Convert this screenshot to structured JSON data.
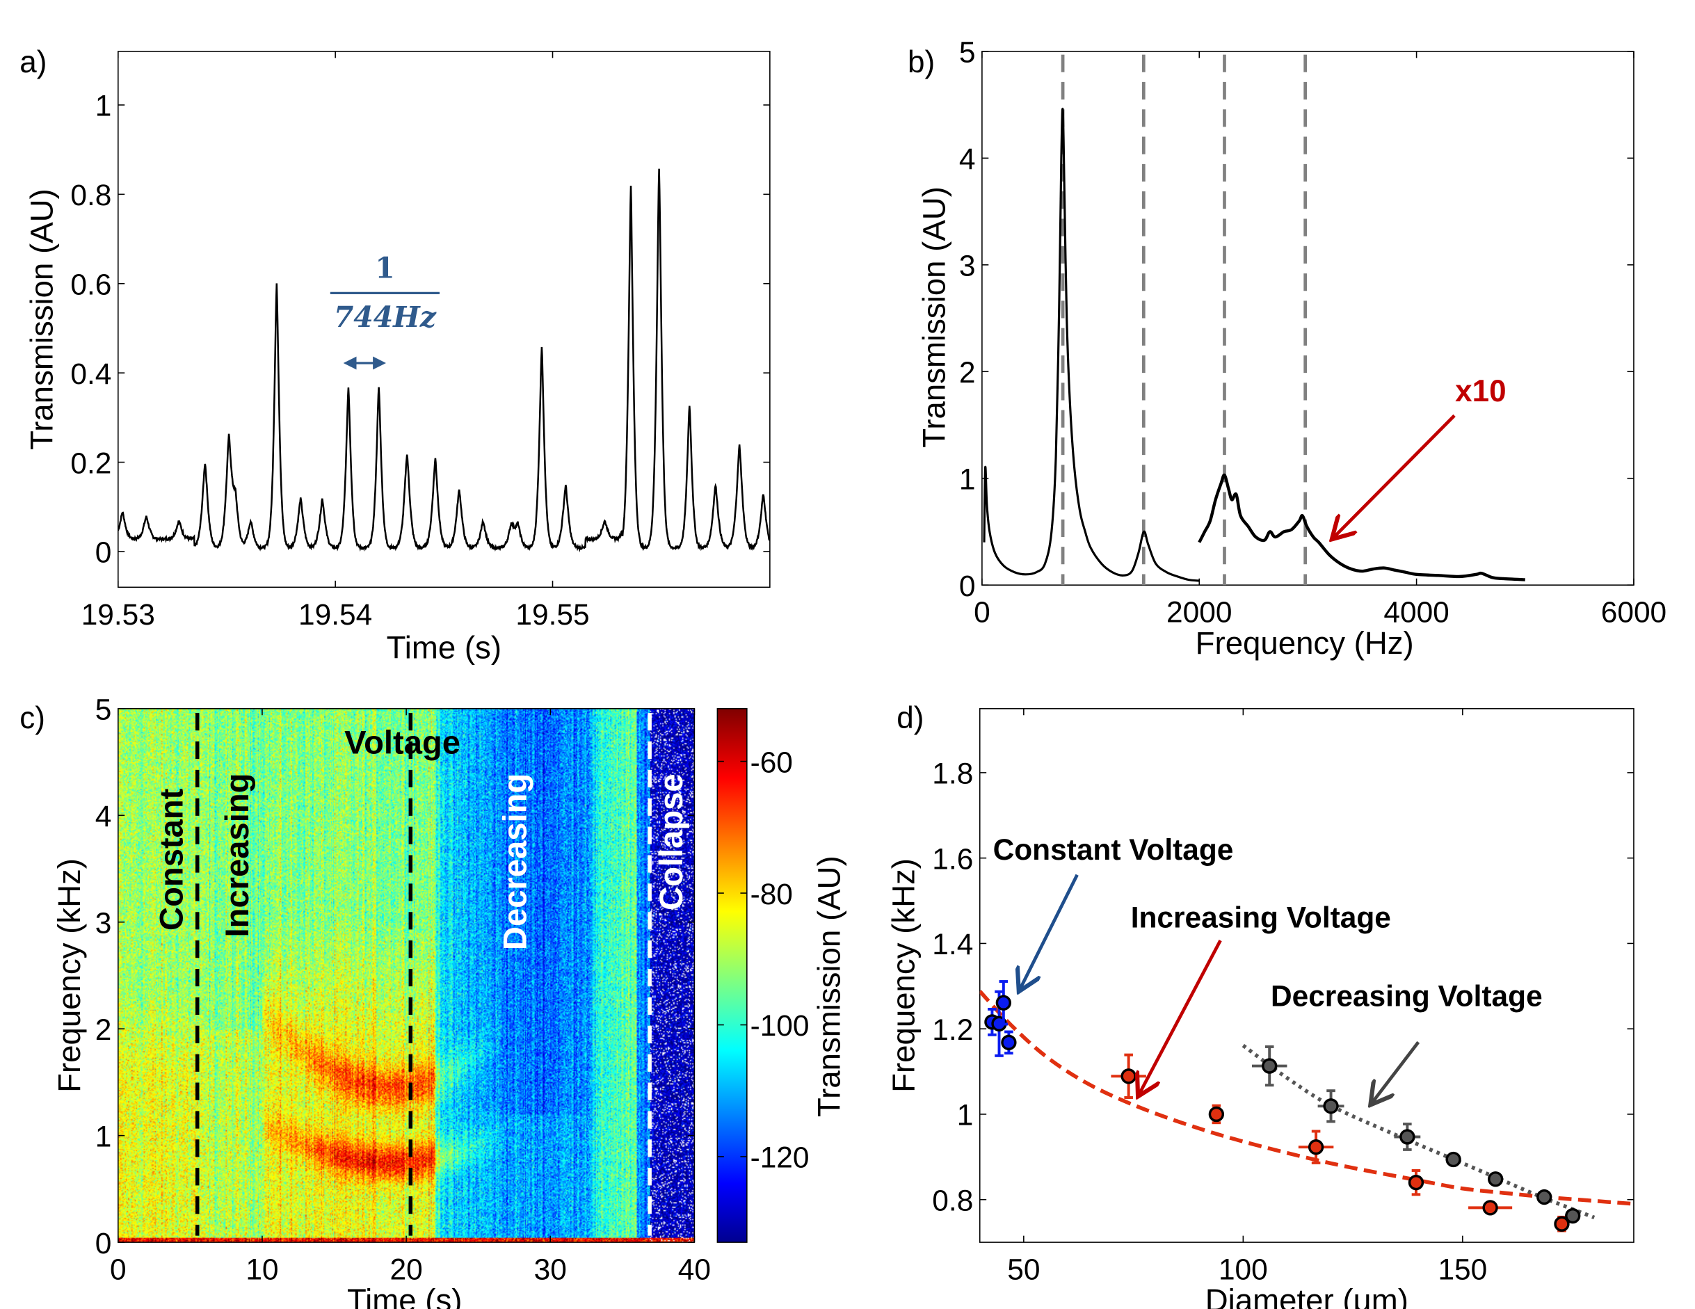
{
  "chart_data": [
    {
      "panel": "a)",
      "type": "line",
      "xlabel": "Time (s)",
      "ylabel": "Transmission (AU)",
      "xlim": [
        19.53,
        19.56
      ],
      "ylim": [
        -0.08,
        1.12
      ],
      "xticks": [
        19.53,
        19.54,
        19.55
      ],
      "xtick_labels": [
        "19.53",
        "19.54",
        "19.55"
      ],
      "yticks": [
        0,
        0.2,
        0.4,
        0.6,
        0.8,
        1
      ],
      "ytick_labels": [
        "0",
        "0.2",
        "0.4",
        "0.6",
        "0.8",
        "1"
      ],
      "line_color": "#000000",
      "peaks": [
        {
          "t": 19.5302,
          "y": 0.07
        },
        {
          "t": 19.5313,
          "y": 0.06
        },
        {
          "t": 19.5328,
          "y": 0.05
        },
        {
          "t": 19.534,
          "y": 0.2
        },
        {
          "t": 19.5351,
          "y": 0.25
        },
        {
          "t": 19.5354,
          "y": 0.11
        },
        {
          "t": 19.5361,
          "y": 0.07
        },
        {
          "t": 19.5373,
          "y": 0.6
        },
        {
          "t": 19.5384,
          "y": 0.12
        },
        {
          "t": 19.5394,
          "y": 0.12
        },
        {
          "t": 19.5406,
          "y": 0.37
        },
        {
          "t": 19.542,
          "y": 0.37
        },
        {
          "t": 19.5433,
          "y": 0.22
        },
        {
          "t": 19.5446,
          "y": 0.21
        },
        {
          "t": 19.5457,
          "y": 0.14
        },
        {
          "t": 19.5468,
          "y": 0.07
        },
        {
          "t": 19.5481,
          "y": 0.06
        },
        {
          "t": 19.5484,
          "y": 0.06
        },
        {
          "t": 19.5495,
          "y": 0.46
        },
        {
          "t": 19.5506,
          "y": 0.15
        },
        {
          "t": 19.5524,
          "y": 0.05
        },
        {
          "t": 19.5536,
          "y": 0.82
        },
        {
          "t": 19.5549,
          "y": 0.86
        },
        {
          "t": 19.5563,
          "y": 0.33
        },
        {
          "t": 19.5575,
          "y": 0.15
        },
        {
          "t": 19.5586,
          "y": 0.24
        },
        {
          "t": 19.5597,
          "y": 0.13
        }
      ],
      "annotation": {
        "numerator": "1",
        "denominator": "744Hz",
        "color": "#2f5a8c"
      }
    },
    {
      "panel": "b)",
      "type": "line",
      "xlabel": "Frequency (Hz)",
      "ylabel": "Transmission (AU)",
      "xlim": [
        0,
        6000
      ],
      "ylim": [
        0,
        5
      ],
      "xticks": [
        0,
        2000,
        4000,
        6000
      ],
      "xtick_labels": [
        "0",
        "2000",
        "4000",
        "6000"
      ],
      "yticks": [
        0,
        1,
        2,
        3,
        4,
        5
      ],
      "ytick_labels": [
        "0",
        "1",
        "2",
        "3",
        "4",
        "5"
      ],
      "harmonic_lines_hz": [
        744,
        1488,
        2232,
        2976
      ],
      "harmonic_line_color": "#808080",
      "series": [
        {
          "points": [
            [
              20,
              0.4
            ],
            [
              30,
              1.1
            ],
            [
              45,
              0.75
            ],
            [
              70,
              0.5
            ],
            [
              120,
              0.3
            ],
            [
              200,
              0.18
            ],
            [
              300,
              0.12
            ],
            [
              400,
              0.1
            ],
            [
              500,
              0.12
            ],
            [
              580,
              0.2
            ],
            [
              640,
              0.5
            ],
            [
              680,
              1.2
            ],
            [
              710,
              2.6
            ],
            [
              730,
              4.0
            ],
            [
              744,
              4.45
            ],
            [
              760,
              3.6
            ],
            [
              780,
              2.5
            ],
            [
              810,
              1.7
            ],
            [
              850,
              1.1
            ],
            [
              900,
              0.7
            ],
            [
              950,
              0.5
            ],
            [
              1000,
              0.35
            ],
            [
              1100,
              0.2
            ],
            [
              1200,
              0.12
            ],
            [
              1300,
              0.09
            ],
            [
              1380,
              0.13
            ],
            [
              1440,
              0.3
            ],
            [
              1490,
              0.5
            ],
            [
              1530,
              0.38
            ],
            [
              1600,
              0.2
            ],
            [
              1700,
              0.12
            ],
            [
              1800,
              0.08
            ],
            [
              1900,
              0.05
            ],
            [
              2000,
              0.04
            ]
          ]
        },
        {
          "points": [
            [
              2000,
              0.4
            ],
            [
              2050,
              0.5
            ],
            [
              2100,
              0.6
            ],
            [
              2150,
              0.8
            ],
            [
              2200,
              0.95
            ],
            [
              2232,
              1.03
            ],
            [
              2270,
              0.9
            ],
            [
              2300,
              0.8
            ],
            [
              2340,
              0.85
            ],
            [
              2380,
              0.65
            ],
            [
              2450,
              0.55
            ],
            [
              2520,
              0.45
            ],
            [
              2600,
              0.42
            ],
            [
              2650,
              0.5
            ],
            [
              2700,
              0.45
            ],
            [
              2780,
              0.5
            ],
            [
              2850,
              0.52
            ],
            [
              2920,
              0.6
            ],
            [
              2950,
              0.65
            ],
            [
              2990,
              0.55
            ],
            [
              3050,
              0.45
            ],
            [
              3100,
              0.4
            ],
            [
              3200,
              0.28
            ],
            [
              3300,
              0.2
            ],
            [
              3400,
              0.15
            ],
            [
              3500,
              0.13
            ],
            [
              3600,
              0.15
            ],
            [
              3700,
              0.16
            ],
            [
              3800,
              0.14
            ],
            [
              3900,
              0.12
            ],
            [
              4000,
              0.1
            ],
            [
              4200,
              0.09
            ],
            [
              4400,
              0.08
            ],
            [
              4550,
              0.1
            ],
            [
              4600,
              0.11
            ],
            [
              4700,
              0.07
            ],
            [
              4800,
              0.06
            ],
            [
              5000,
              0.05
            ]
          ]
        }
      ],
      "annotation": {
        "text": "x10",
        "color": "#c00000"
      }
    },
    {
      "panel": "c)",
      "type": "heatmap",
      "xlabel": "Time (s)",
      "ylabel": "Frequency (kHz)",
      "xlim": [
        0,
        40
      ],
      "ylim": [
        0,
        5
      ],
      "xticks": [
        0,
        10,
        20,
        30,
        40
      ],
      "xtick_labels": [
        "0",
        "10",
        "20",
        "30",
        "40"
      ],
      "yticks": [
        0,
        1,
        2,
        3,
        4,
        5
      ],
      "ytick_labels": [
        "0",
        "1",
        "2",
        "3",
        "4",
        "5"
      ],
      "colormap": "jet",
      "clim": [
        -133,
        -52
      ],
      "colorbar_label": "Transmission (AU)",
      "colorbar_ticks": [
        -60,
        -80,
        -100,
        -120
      ],
      "colorbar_tick_labels": [
        "-60",
        "-80",
        "-100",
        "-120"
      ],
      "phase_boundaries_s": [
        5.5,
        20.3,
        36.9
      ],
      "labels": {
        "constant": "Constant",
        "increasing": "Increasing",
        "voltage": "Voltage",
        "decreasing": "Decreasing",
        "collapse": "Collapse"
      }
    },
    {
      "panel": "d)",
      "type": "scatter",
      "xlabel": "Diameter (μm)",
      "ylabel": "Frequency (kHz)",
      "xlim": [
        40,
        189
      ],
      "ylim": [
        0.7,
        1.95
      ],
      "xticks": [
        50,
        100,
        150
      ],
      "xtick_labels": [
        "50",
        "100",
        "150"
      ],
      "yticks": [
        0.8,
        1,
        1.2,
        1.4,
        1.6,
        1.8
      ],
      "ytick_labels": [
        "0.8",
        "1",
        "1.2",
        "1.4",
        "1.6",
        "1.8"
      ],
      "series": [
        {
          "name": "Constant Voltage",
          "color": "#0a1cf0",
          "arrow_color": "#1f4e8c",
          "points": [
            {
              "x": 42.8,
              "y": 1.216,
              "ex": 0,
              "ey": 0.03
            },
            {
              "x": 44.4,
              "y": 1.212,
              "ex": 0,
              "ey": 0.075
            },
            {
              "x": 45.4,
              "y": 1.261,
              "ex": 0,
              "ey": 0.05
            },
            {
              "x": 46.6,
              "y": 1.168,
              "ex": 0,
              "ey": 0.025
            }
          ]
        },
        {
          "name": "Increasing Voltage",
          "color": "#e03010",
          "arrow_color": "#c00000",
          "points": [
            {
              "x": 73.9,
              "y": 1.089,
              "ex": 4,
              "ey": 0.05
            },
            {
              "x": 93.9,
              "y": 1.0,
              "ex": 1,
              "ey": 0.02
            },
            {
              "x": 116.6,
              "y": 0.923,
              "ex": 4,
              "ey": 0.037
            },
            {
              "x": 139.4,
              "y": 0.84,
              "ex": 0.5,
              "ey": 0.028
            },
            {
              "x": 156.3,
              "y": 0.781,
              "ex": 5,
              "ey": 0
            },
            {
              "x": 172.6,
              "y": 0.743,
              "ex": 1,
              "ey": 0.016
            }
          ],
          "fit": [
            [
              40,
              1.288
            ],
            [
              47,
              1.21
            ],
            [
              55,
              1.136
            ],
            [
              64,
              1.075
            ],
            [
              74,
              1.026
            ],
            [
              86,
              0.98
            ],
            [
              100,
              0.936
            ],
            [
              120,
              0.885
            ],
            [
              140,
              0.845
            ],
            [
              150,
              0.826
            ],
            [
              160,
              0.815
            ],
            [
              170,
              0.805
            ],
            [
              180,
              0.797
            ],
            [
              189,
              0.79
            ]
          ]
        },
        {
          "name": "Decreasing Voltage",
          "color": "#555555",
          "arrow_color": "#444444",
          "points": [
            {
              "x": 106.0,
              "y": 1.113,
              "ex": 4,
              "ey": 0.045
            },
            {
              "x": 120.0,
              "y": 1.019,
              "ex": 3,
              "ey": 0.036
            },
            {
              "x": 137.4,
              "y": 0.947,
              "ex": 3,
              "ey": 0.03
            },
            {
              "x": 147.9,
              "y": 0.894,
              "ex": 0,
              "ey": 0
            },
            {
              "x": 157.5,
              "y": 0.848,
              "ex": 0,
              "ey": 0.01
            },
            {
              "x": 168.6,
              "y": 0.806,
              "ex": 0,
              "ey": 0
            },
            {
              "x": 175.1,
              "y": 0.762,
              "ex": 0,
              "ey": 0
            }
          ],
          "fit": [
            [
              100,
              1.161
            ],
            [
              110,
              1.085
            ],
            [
              120,
              1.02
            ],
            [
              134,
              0.955
            ],
            [
              148,
              0.894
            ],
            [
              158,
              0.85
            ],
            [
              168,
              0.806
            ],
            [
              180,
              0.758
            ]
          ]
        }
      ]
    }
  ]
}
